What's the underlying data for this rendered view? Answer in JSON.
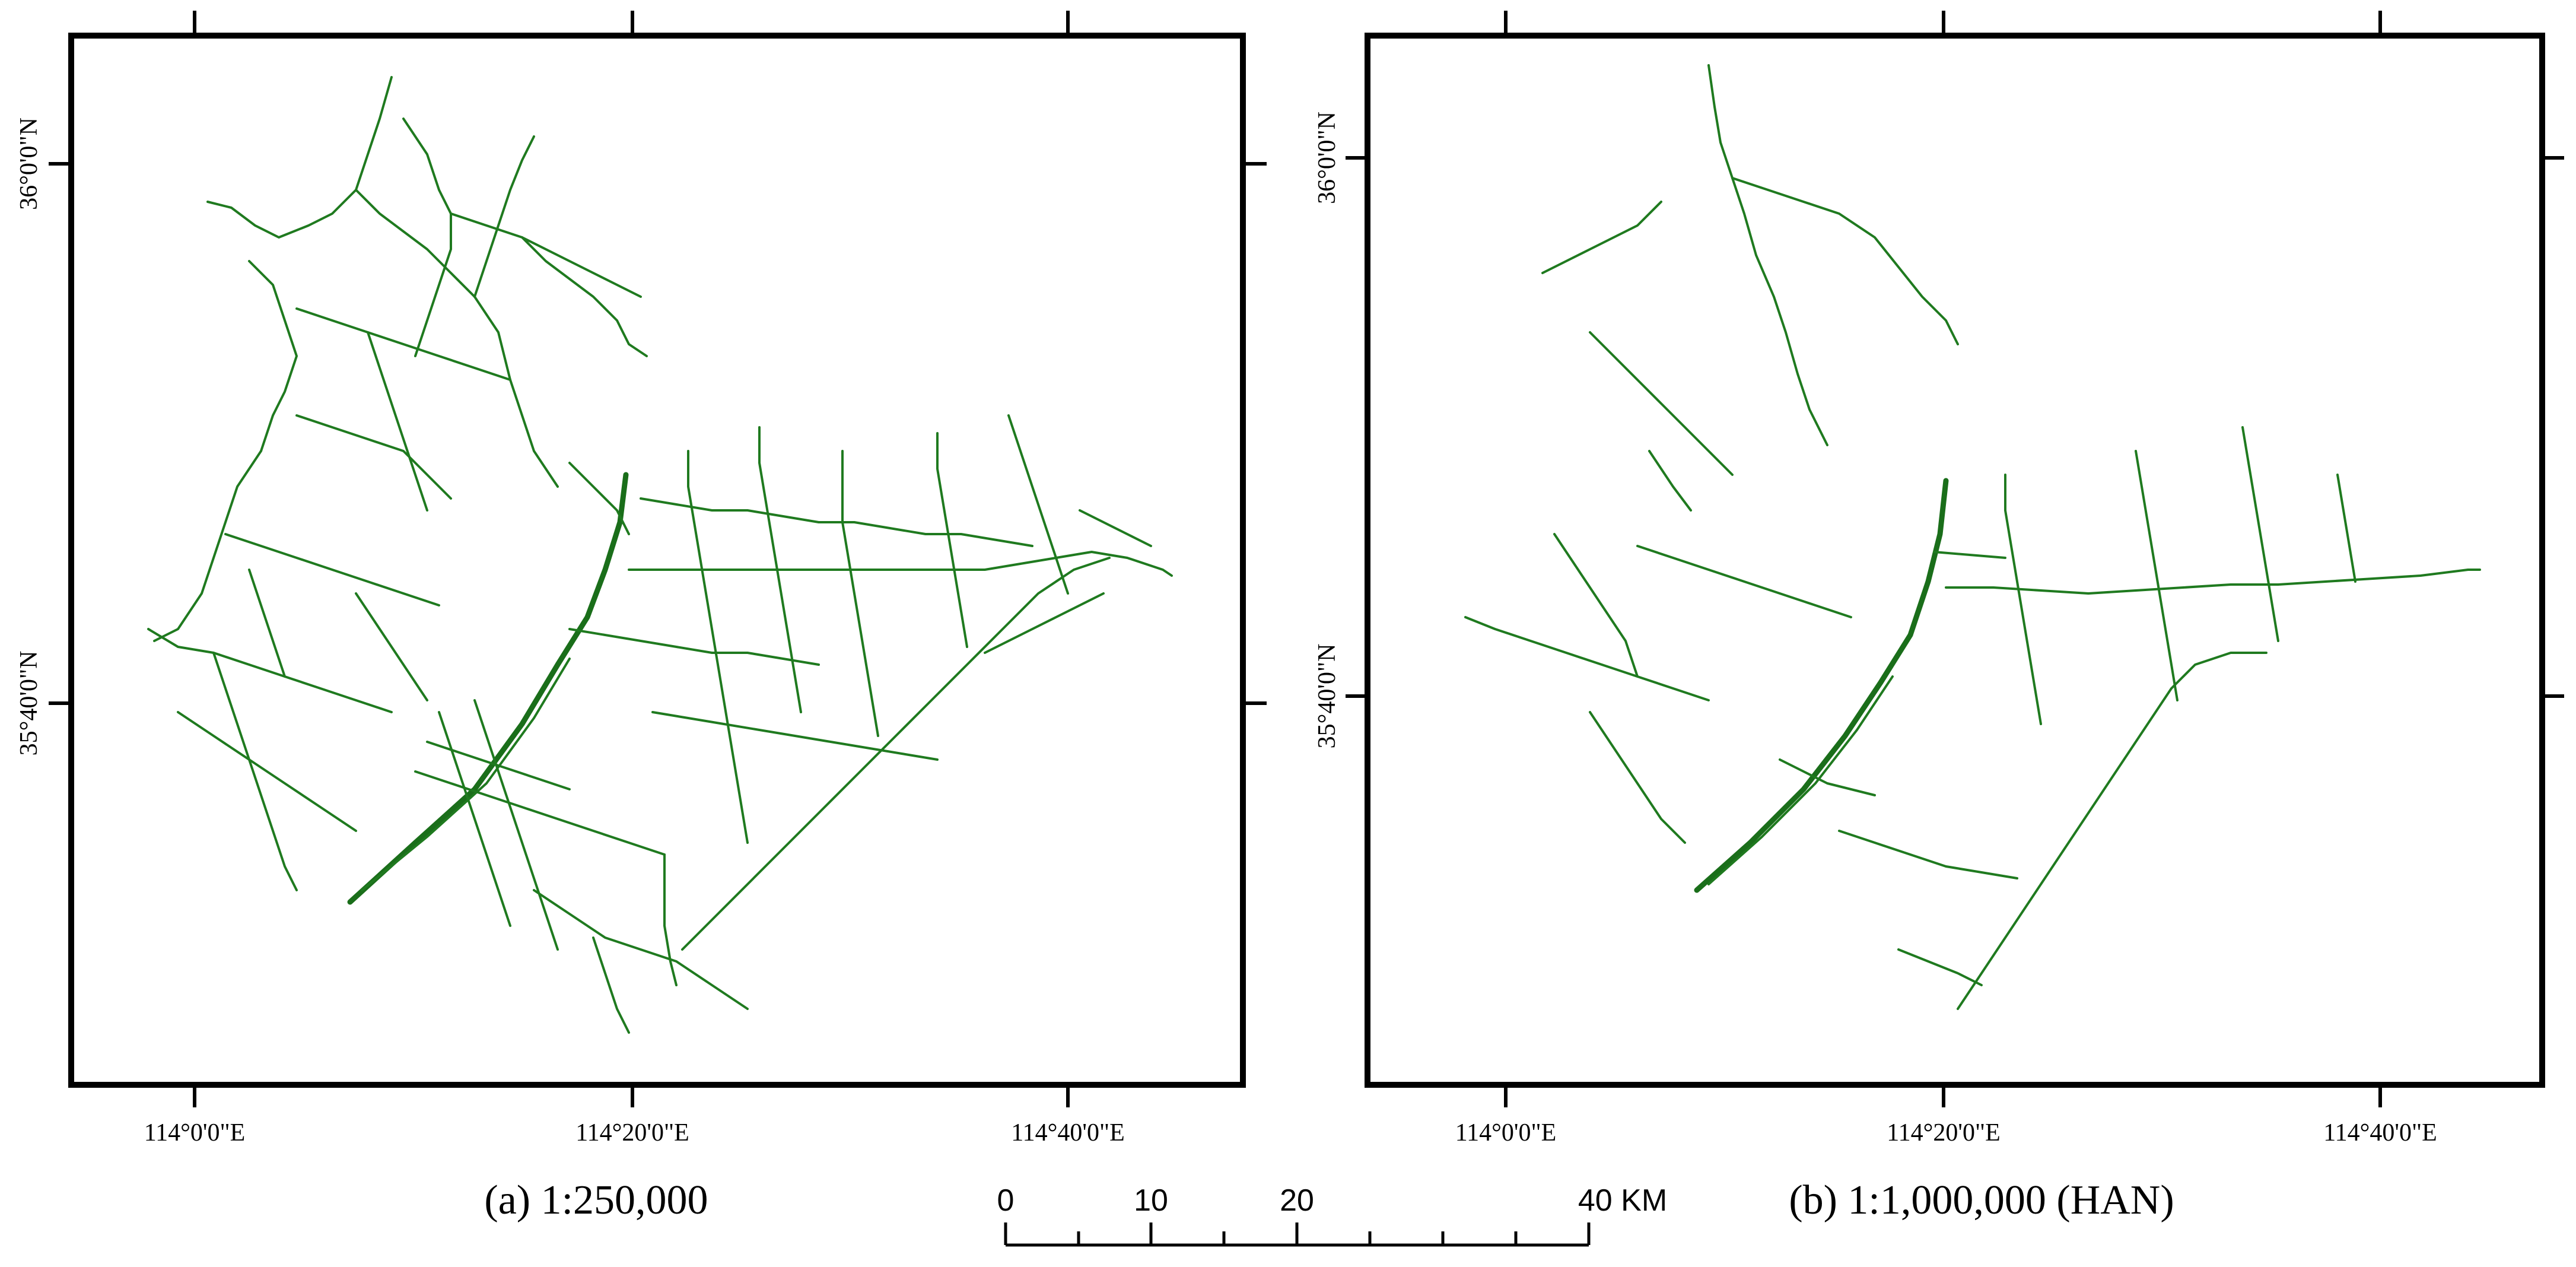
{
  "panels": [
    {
      "id": "a",
      "caption": "(a) 1:250,000",
      "lon_labels": [
        "114°0'0\"E",
        "114°20'0\"E",
        "114°40'0\"E"
      ],
      "lat_labels": [
        "36°0'0\"N",
        "35°40'0\"N"
      ]
    },
    {
      "id": "b",
      "caption": "(b) 1:1,000,000 (HAN)",
      "lon_labels": [
        "114°0'0\"E",
        "114°20'0\"E",
        "114°40'0\"E"
      ],
      "lat_labels": [
        "36°0'0\"N",
        "35°40'0\"N"
      ]
    }
  ],
  "scale_bar": {
    "labels": [
      "0",
      "10",
      "20",
      "40 KM"
    ]
  },
  "colors": {
    "road": "#1f7a1f",
    "frame": "#000000",
    "background": "#ffffff"
  }
}
